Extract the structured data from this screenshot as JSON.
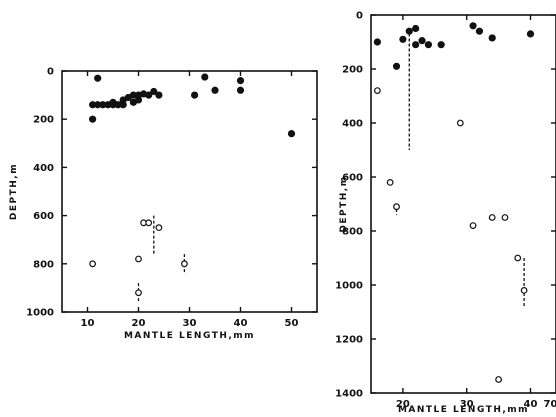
{
  "chart_data": [
    {
      "type": "scatter",
      "xlabel": "MANTLE LENGTH,mm",
      "ylabel": "DEPTH,m",
      "xlim": [
        5,
        55
      ],
      "ylim": [
        0,
        1000
      ],
      "y_inverted": true,
      "xticks": [
        10,
        20,
        30,
        40,
        50
      ],
      "yticks": [
        0,
        200,
        400,
        600,
        800,
        1000
      ],
      "grid": false,
      "series": [
        {
          "marker": "filled-circle",
          "points": [
            [
              11,
              140
            ],
            [
              12,
              140
            ],
            [
              12,
              30
            ],
            [
              11,
              200
            ],
            [
              13,
              140
            ],
            [
              14,
              140
            ],
            [
              15,
              140
            ],
            [
              15,
              130
            ],
            [
              16,
              140
            ],
            [
              17,
              120
            ],
            [
              17,
              140
            ],
            [
              18,
              110
            ],
            [
              19,
              100
            ],
            [
              19,
              130
            ],
            [
              20,
              100
            ],
            [
              20,
              120
            ],
            [
              21,
              95
            ],
            [
              22,
              100
            ],
            [
              23,
              85
            ],
            [
              24,
              100
            ],
            [
              31,
              100
            ],
            [
              33,
              25
            ],
            [
              35,
              80
            ],
            [
              40,
              40
            ],
            [
              40,
              80
            ],
            [
              50,
              260
            ]
          ]
        },
        {
          "marker": "open-circle",
          "points": [
            [
              11,
              800
            ],
            [
              20,
              780
            ],
            [
              20,
              920
            ],
            [
              21,
              630
            ],
            [
              22,
              630
            ],
            [
              24,
              650
            ],
            [
              29,
              800
            ]
          ]
        }
      ],
      "ranges": [
        {
          "x": 20,
          "y1": 880,
          "y2": 960
        },
        {
          "x": 23,
          "y1": 600,
          "y2": 760
        },
        {
          "x": 29,
          "y1": 760,
          "y2": 840
        }
      ]
    },
    {
      "type": "scatter",
      "xlabel": "MANTLE LENGTH,mm",
      "ylabel": "DEPTH,m",
      "xlim": [
        15,
        44
      ],
      "ylim": [
        0,
        1400
      ],
      "y_inverted": true,
      "xticks": [
        20,
        30,
        40
      ],
      "xtick_labels": [
        "20",
        "30",
        "40"
      ],
      "extra_tick_label": "70",
      "yticks": [
        0,
        200,
        400,
        600,
        800,
        1000,
        1200,
        1400
      ],
      "grid": false,
      "series": [
        {
          "marker": "filled-circle",
          "points": [
            [
              16,
              100
            ],
            [
              19,
              190
            ],
            [
              20,
              90
            ],
            [
              21,
              60
            ],
            [
              22,
              50
            ],
            [
              22,
              110
            ],
            [
              23,
              95
            ],
            [
              24,
              110
            ],
            [
              26,
              110
            ],
            [
              31,
              40
            ],
            [
              32,
              60
            ],
            [
              34,
              85
            ],
            [
              40,
              70
            ]
          ]
        },
        {
          "marker": "open-circle",
          "points": [
            [
              16,
              280
            ],
            [
              18,
              620
            ],
            [
              19,
              710
            ],
            [
              29,
              400
            ],
            [
              31,
              780
            ],
            [
              34,
              750
            ],
            [
              36,
              750
            ],
            [
              38,
              900
            ],
            [
              39,
              1020
            ],
            [
              35,
              1350
            ]
          ]
        }
      ],
      "ranges": [
        {
          "x": 19,
          "y1": 700,
          "y2": 740
        },
        {
          "x": 21,
          "y1": 50,
          "y2": 500
        },
        {
          "x": 39,
          "y1": 900,
          "y2": 1080
        }
      ]
    }
  ]
}
